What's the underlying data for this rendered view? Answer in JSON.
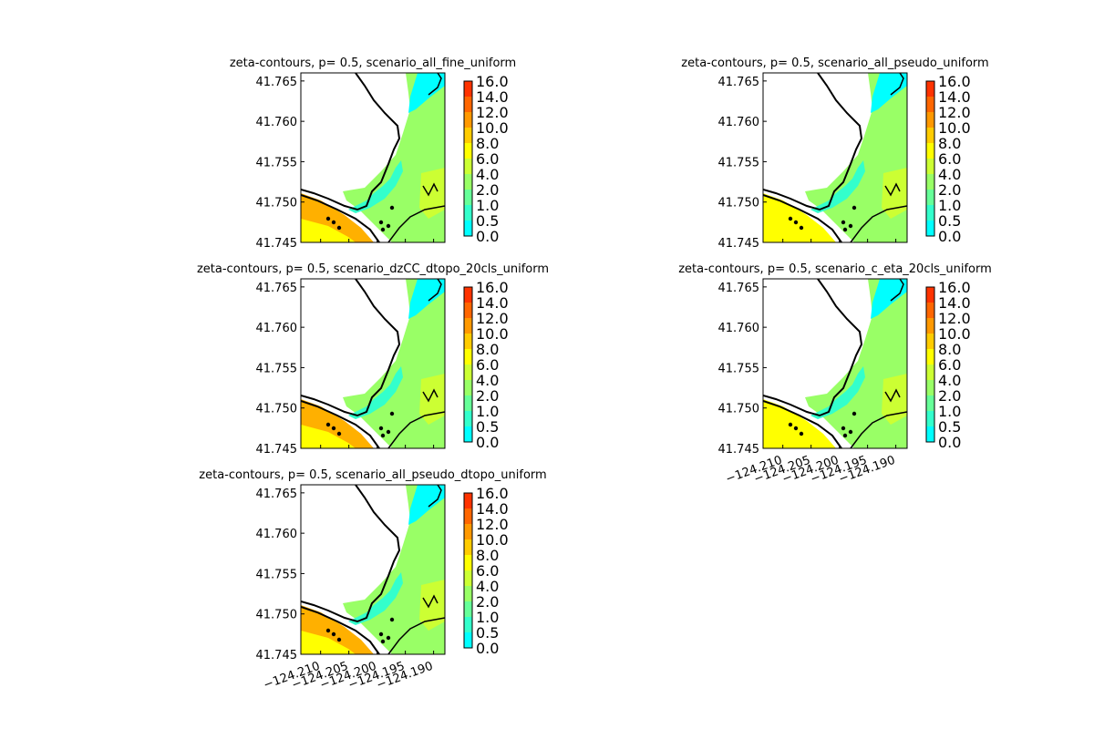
{
  "chart_data": {
    "type": "heatmap",
    "colorbar": {
      "levels": [
        0.0,
        0.5,
        1.0,
        2.0,
        4.0,
        6.0,
        8.0,
        10.0,
        12.0,
        14.0,
        16.0
      ],
      "tick_labels": [
        "0.0",
        "0.5",
        "1.0",
        "2.0",
        "4.0",
        "6.0",
        "8.0",
        "10.0",
        "12.0",
        "14.0",
        "16.0"
      ],
      "colors": [
        "#00ffff",
        "#33ffcc",
        "#66ff99",
        "#99ff66",
        "#ccff33",
        "#ffff00",
        "#ffcc00",
        "#ff9900",
        "#ff6600",
        "#ff3300",
        "#ff0000"
      ]
    },
    "y_ticks": [
      "41.745",
      "41.750",
      "41.755",
      "41.760",
      "41.765"
    ],
    "x_ticks": [
      "−124.210",
      "−124.205",
      "−124.200",
      "−124.195",
      "−124.190"
    ],
    "ylim": [
      41.745,
      41.766
    ],
    "xlim": [
      -124.2135,
      -124.188
    ],
    "panels": [
      {
        "title": "zeta-contours, p= 0.5, scenario_all_fine_uniform",
        "x_ticks_shown": false,
        "sw_level": "orange"
      },
      {
        "title": "zeta-contours, p= 0.5, scenario_all_pseudo_uniform",
        "x_ticks_shown": false,
        "sw_level": "yellow"
      },
      {
        "title": "zeta-contours, p= 0.5, scenario_dzCC_dtopo_20cls_uniform",
        "x_ticks_shown": false,
        "sw_level": "orange"
      },
      {
        "title": "zeta-contours, p= 0.5, scenario_c_eta_20cls_uniform",
        "x_ticks_shown": true,
        "sw_level": "yellow"
      },
      {
        "title": "zeta-contours, p= 0.5, scenario_all_pseudo_dtopo_uniform",
        "x_ticks_shown": true,
        "sw_level": "orange"
      }
    ]
  }
}
